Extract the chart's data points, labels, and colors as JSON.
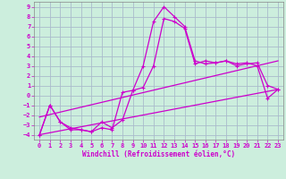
{
  "xlabel": "Windchill (Refroidissement éolien,°C)",
  "background_color": "#cceedd",
  "grid_color": "#aabbcc",
  "line_color": "#cc00cc",
  "xlim": [
    -0.5,
    23.5
  ],
  "ylim": [
    -4.5,
    9.5
  ],
  "xticks": [
    0,
    1,
    2,
    3,
    4,
    5,
    6,
    7,
    8,
    9,
    10,
    11,
    12,
    13,
    14,
    15,
    16,
    17,
    18,
    19,
    20,
    21,
    22,
    23
  ],
  "yticks": [
    -4,
    -3,
    -2,
    -1,
    0,
    1,
    2,
    3,
    4,
    5,
    6,
    7,
    8,
    9
  ],
  "line1_x": [
    0,
    1,
    2,
    3,
    4,
    5,
    6,
    7,
    8,
    9,
    10,
    11,
    12,
    13,
    14,
    15,
    16,
    17,
    18,
    19,
    20,
    21,
    22,
    23
  ],
  "line1_y": [
    -4.0,
    -1.0,
    -2.7,
    -3.5,
    -3.5,
    -3.7,
    -3.3,
    -3.5,
    0.3,
    0.5,
    3.0,
    7.5,
    9.0,
    8.0,
    7.0,
    3.5,
    3.2,
    3.3,
    3.5,
    3.0,
    3.2,
    3.3,
    1.0,
    0.6
  ],
  "line2_x": [
    0,
    1,
    2,
    3,
    4,
    5,
    6,
    7,
    8,
    9,
    10,
    11,
    12,
    13,
    14,
    15,
    16,
    17,
    18,
    19,
    20,
    21,
    22,
    23
  ],
  "line2_y": [
    -4.0,
    -1.0,
    -2.7,
    -3.3,
    -3.5,
    -3.7,
    -2.7,
    -3.3,
    -2.5,
    0.5,
    0.8,
    3.0,
    7.8,
    7.5,
    6.8,
    3.2,
    3.5,
    3.3,
    3.5,
    3.2,
    3.3,
    3.0,
    -0.3,
    0.6
  ],
  "trend1_x": [
    0,
    23
  ],
  "trend1_y": [
    -4.0,
    0.6
  ],
  "trend2_x": [
    0,
    23
  ],
  "trend2_y": [
    -2.2,
    3.5
  ]
}
